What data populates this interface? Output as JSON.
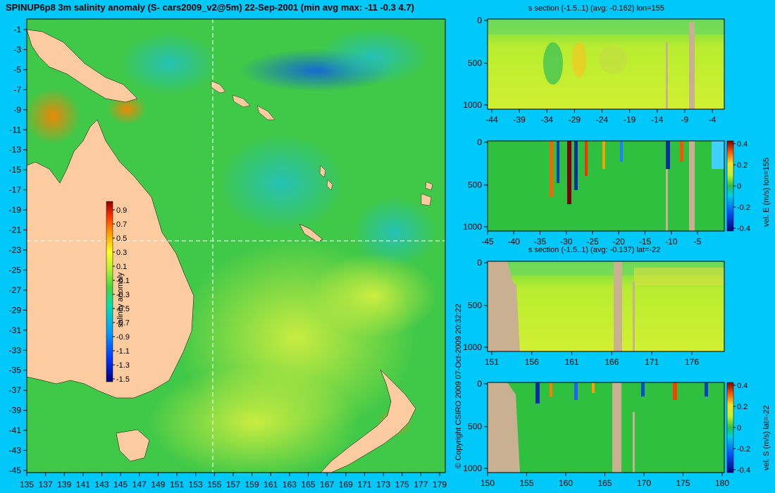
{
  "title": "SPINUP6p8 3m salinity anomaly (S- cars2009_v2@5m) 22-Sep-2001 (min avg max: -11 -0.3 4.7)",
  "copyright": "© Copyright CSIRO 2009   07-Oct-2009 20:32:22",
  "map": {
    "lat_ticks": [
      "-1",
      "-3",
      "-5",
      "-7",
      "-9",
      "-11",
      "-13",
      "-15",
      "-17",
      "-19",
      "-21",
      "-23",
      "-25",
      "-27",
      "-29",
      "-31",
      "-33",
      "-35",
      "-37",
      "-39",
      "-41",
      "-43",
      "-45"
    ],
    "lon_ticks": [
      "135",
      "137",
      "139",
      "141",
      "143",
      "145",
      "147",
      "149",
      "151",
      "153",
      "155",
      "157",
      "159",
      "161",
      "163",
      "165",
      "167",
      "169",
      "171",
      "173",
      "175",
      "177",
      "179"
    ],
    "section_lon": 155,
    "section_lat": -22,
    "colorbar": {
      "label": "salinity anomaly",
      "ticks": [
        "0.9",
        "0.7",
        "0.5",
        "0.3",
        "0.1",
        "-0.1",
        "-0.3",
        "-0.5",
        "-0.7",
        "-0.9",
        "-1.1",
        "-1.3",
        "-1.5"
      ]
    }
  },
  "panels": [
    {
      "title": "s section (-1.5..1) (avg: -0.162) lon=155",
      "y_ticks": [
        "0",
        "500",
        "1000"
      ],
      "x_ticks": [
        "-44",
        "-39",
        "-34",
        "-29",
        "-24",
        "-19",
        "-14",
        "-9",
        "-4"
      ],
      "colorbar_label": "",
      "colorbar_ticks": []
    },
    {
      "title": "",
      "y_ticks": [
        "0",
        "500",
        "1000"
      ],
      "x_ticks": [
        "-45",
        "-40",
        "-35",
        "-30",
        "-25",
        "-20",
        "-15",
        "-10",
        "-5"
      ],
      "colorbar_label": "vel. E (m/s) lon=155",
      "colorbar_ticks": [
        "0.4",
        "0.2",
        "0",
        "-0.2",
        "-0.4"
      ]
    },
    {
      "title": "s section (-1.5..1) (avg: -0.137) lat=-22",
      "y_ticks": [
        "0",
        "500",
        "1000"
      ],
      "x_ticks": [
        "151",
        "156",
        "161",
        "166",
        "171",
        "176"
      ],
      "colorbar_label": "",
      "colorbar_ticks": []
    },
    {
      "title": "",
      "y_ticks": [
        "0",
        "500",
        "1000"
      ],
      "x_ticks": [
        "150",
        "155",
        "160",
        "165",
        "170",
        "175",
        "180"
      ],
      "colorbar_label": "vel. S (m/s) lat=-22",
      "colorbar_ticks": [
        "0.4",
        "0.2",
        "0",
        "-0.2",
        "-0.4"
      ]
    }
  ]
}
